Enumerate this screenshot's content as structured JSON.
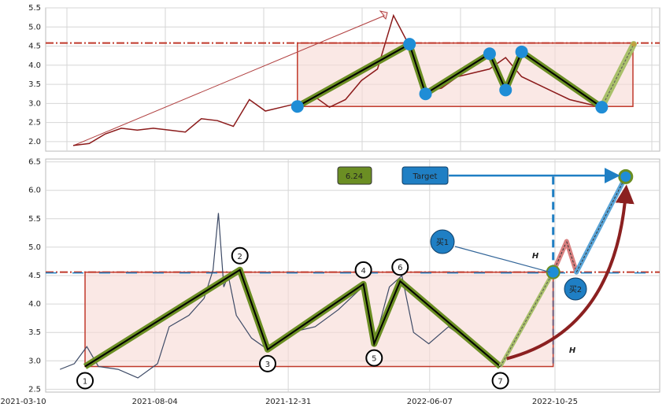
{
  "chart_data": [
    {
      "type": "line",
      "ylim": [
        1.75,
        5.5
      ],
      "yticks": [
        {
          "value": 2,
          "label": "2.0"
        },
        2.5,
        {
          "value": 3,
          "label": "3.0"
        },
        3.5,
        {
          "value": 4,
          "label": "4.0"
        },
        4.5,
        {
          "value": 5,
          "label": "5.0"
        },
        5.5
      ],
      "grid": true,
      "channel": [
        2.92,
        4.58
      ],
      "series": [
        {
          "color": "#8b1a1a",
          "values": [
            1.9,
            1.95,
            2.2,
            2.35,
            2.3,
            2.35,
            2.3,
            2.25,
            2.6,
            2.55,
            2.4,
            3.1,
            2.8,
            2.9,
            3.0,
            3.2,
            2.9,
            3.1,
            3.6,
            3.9,
            5.3,
            4.5,
            3.3,
            3.4,
            3.7,
            3.8,
            3.9,
            4.2,
            3.7,
            3.5,
            3.3,
            3.1,
            3.0,
            2.9,
            3.6,
            4.4
          ]
        },
        {
          "color": "#6b8e23",
          "values": [
            null,
            null,
            null,
            null,
            null,
            null,
            null,
            null,
            null,
            null,
            null,
            null,
            null,
            null,
            2.92,
            null,
            null,
            null,
            null,
            null,
            null,
            4.55,
            3.25,
            null,
            null,
            null,
            4.3,
            3.35,
            4.35,
            null,
            null,
            null,
            null,
            2.9,
            null,
            4.55
          ]
        }
      ]
    },
    {
      "type": "line",
      "xlim": [
        "2021-04-04",
        "2023-02-19"
      ],
      "ylim": [
        2.45,
        6.55
      ],
      "xticks": [
        "2021-03-10",
        "2021-08-04",
        "2021-12-31",
        "2022-06-07",
        "2022-10-25"
      ],
      "yticks": [
        2.5,
        {
          "value": 3,
          "label": "3.0"
        },
        3.5,
        {
          "value": 4,
          "label": "4.0"
        },
        4.5,
        {
          "value": 5,
          "label": "5.0"
        },
        5.5,
        {
          "value": 6,
          "label": "6.0"
        },
        6.5
      ],
      "grid": true,
      "channel": [
        2.9,
        4.56
      ],
      "series": [
        {
          "color": "#3d4a66",
          "x": [
            "2021-04-20",
            "2021-05-06",
            "2021-05-20",
            "2021-06-02",
            "2021-06-24",
            "2021-07-16",
            "2021-08-07",
            "2021-08-20",
            "2021-09-11",
            "2021-09-28",
            "2021-10-08",
            "2021-10-14",
            "2021-10-20",
            "2021-10-25",
            "2021-11-03",
            "2021-11-20",
            "2021-12-08",
            "2022-01-03",
            "2022-01-30",
            "2022-02-25",
            "2022-03-24",
            "2022-04-06",
            "2022-04-23",
            "2022-05-07",
            "2022-05-20",
            "2022-06-06",
            "2022-06-28",
            "2022-07-25",
            "2022-08-20"
          ],
          "values": [
            2.85,
            2.95,
            3.25,
            2.9,
            2.85,
            2.7,
            2.95,
            3.6,
            3.8,
            4.1,
            4.6,
            5.6,
            4.3,
            4.5,
            3.8,
            3.4,
            3.2,
            3.5,
            3.6,
            3.9,
            4.3,
            3.3,
            4.3,
            4.5,
            3.5,
            3.3,
            3.6,
            3.3,
            2.95
          ]
        }
      ],
      "pattern": {
        "color": "#6b8e23",
        "labels": [
          "1",
          "2",
          "3",
          "4",
          "5",
          "6",
          "7"
        ],
        "x": [
          "2021-05-18",
          "2021-11-07",
          "2021-12-08",
          "2022-03-25",
          "2022-04-06",
          "2022-05-05",
          "2022-08-25"
        ],
        "values": [
          2.9,
          4.6,
          3.2,
          4.35,
          3.3,
          4.4,
          2.9
        ]
      },
      "projection": {
        "x": [
          "2022-10-23",
          "2022-11-07",
          "2022-11-18",
          "2023-01-12"
        ],
        "values": [
          4.56,
          5.1,
          4.56,
          6.24
        ]
      },
      "target": {
        "label": "Target",
        "value": 6.24
      },
      "annotations": {
        "buy1": "买1",
        "buy2": "买2",
        "height": "H"
      }
    }
  ]
}
